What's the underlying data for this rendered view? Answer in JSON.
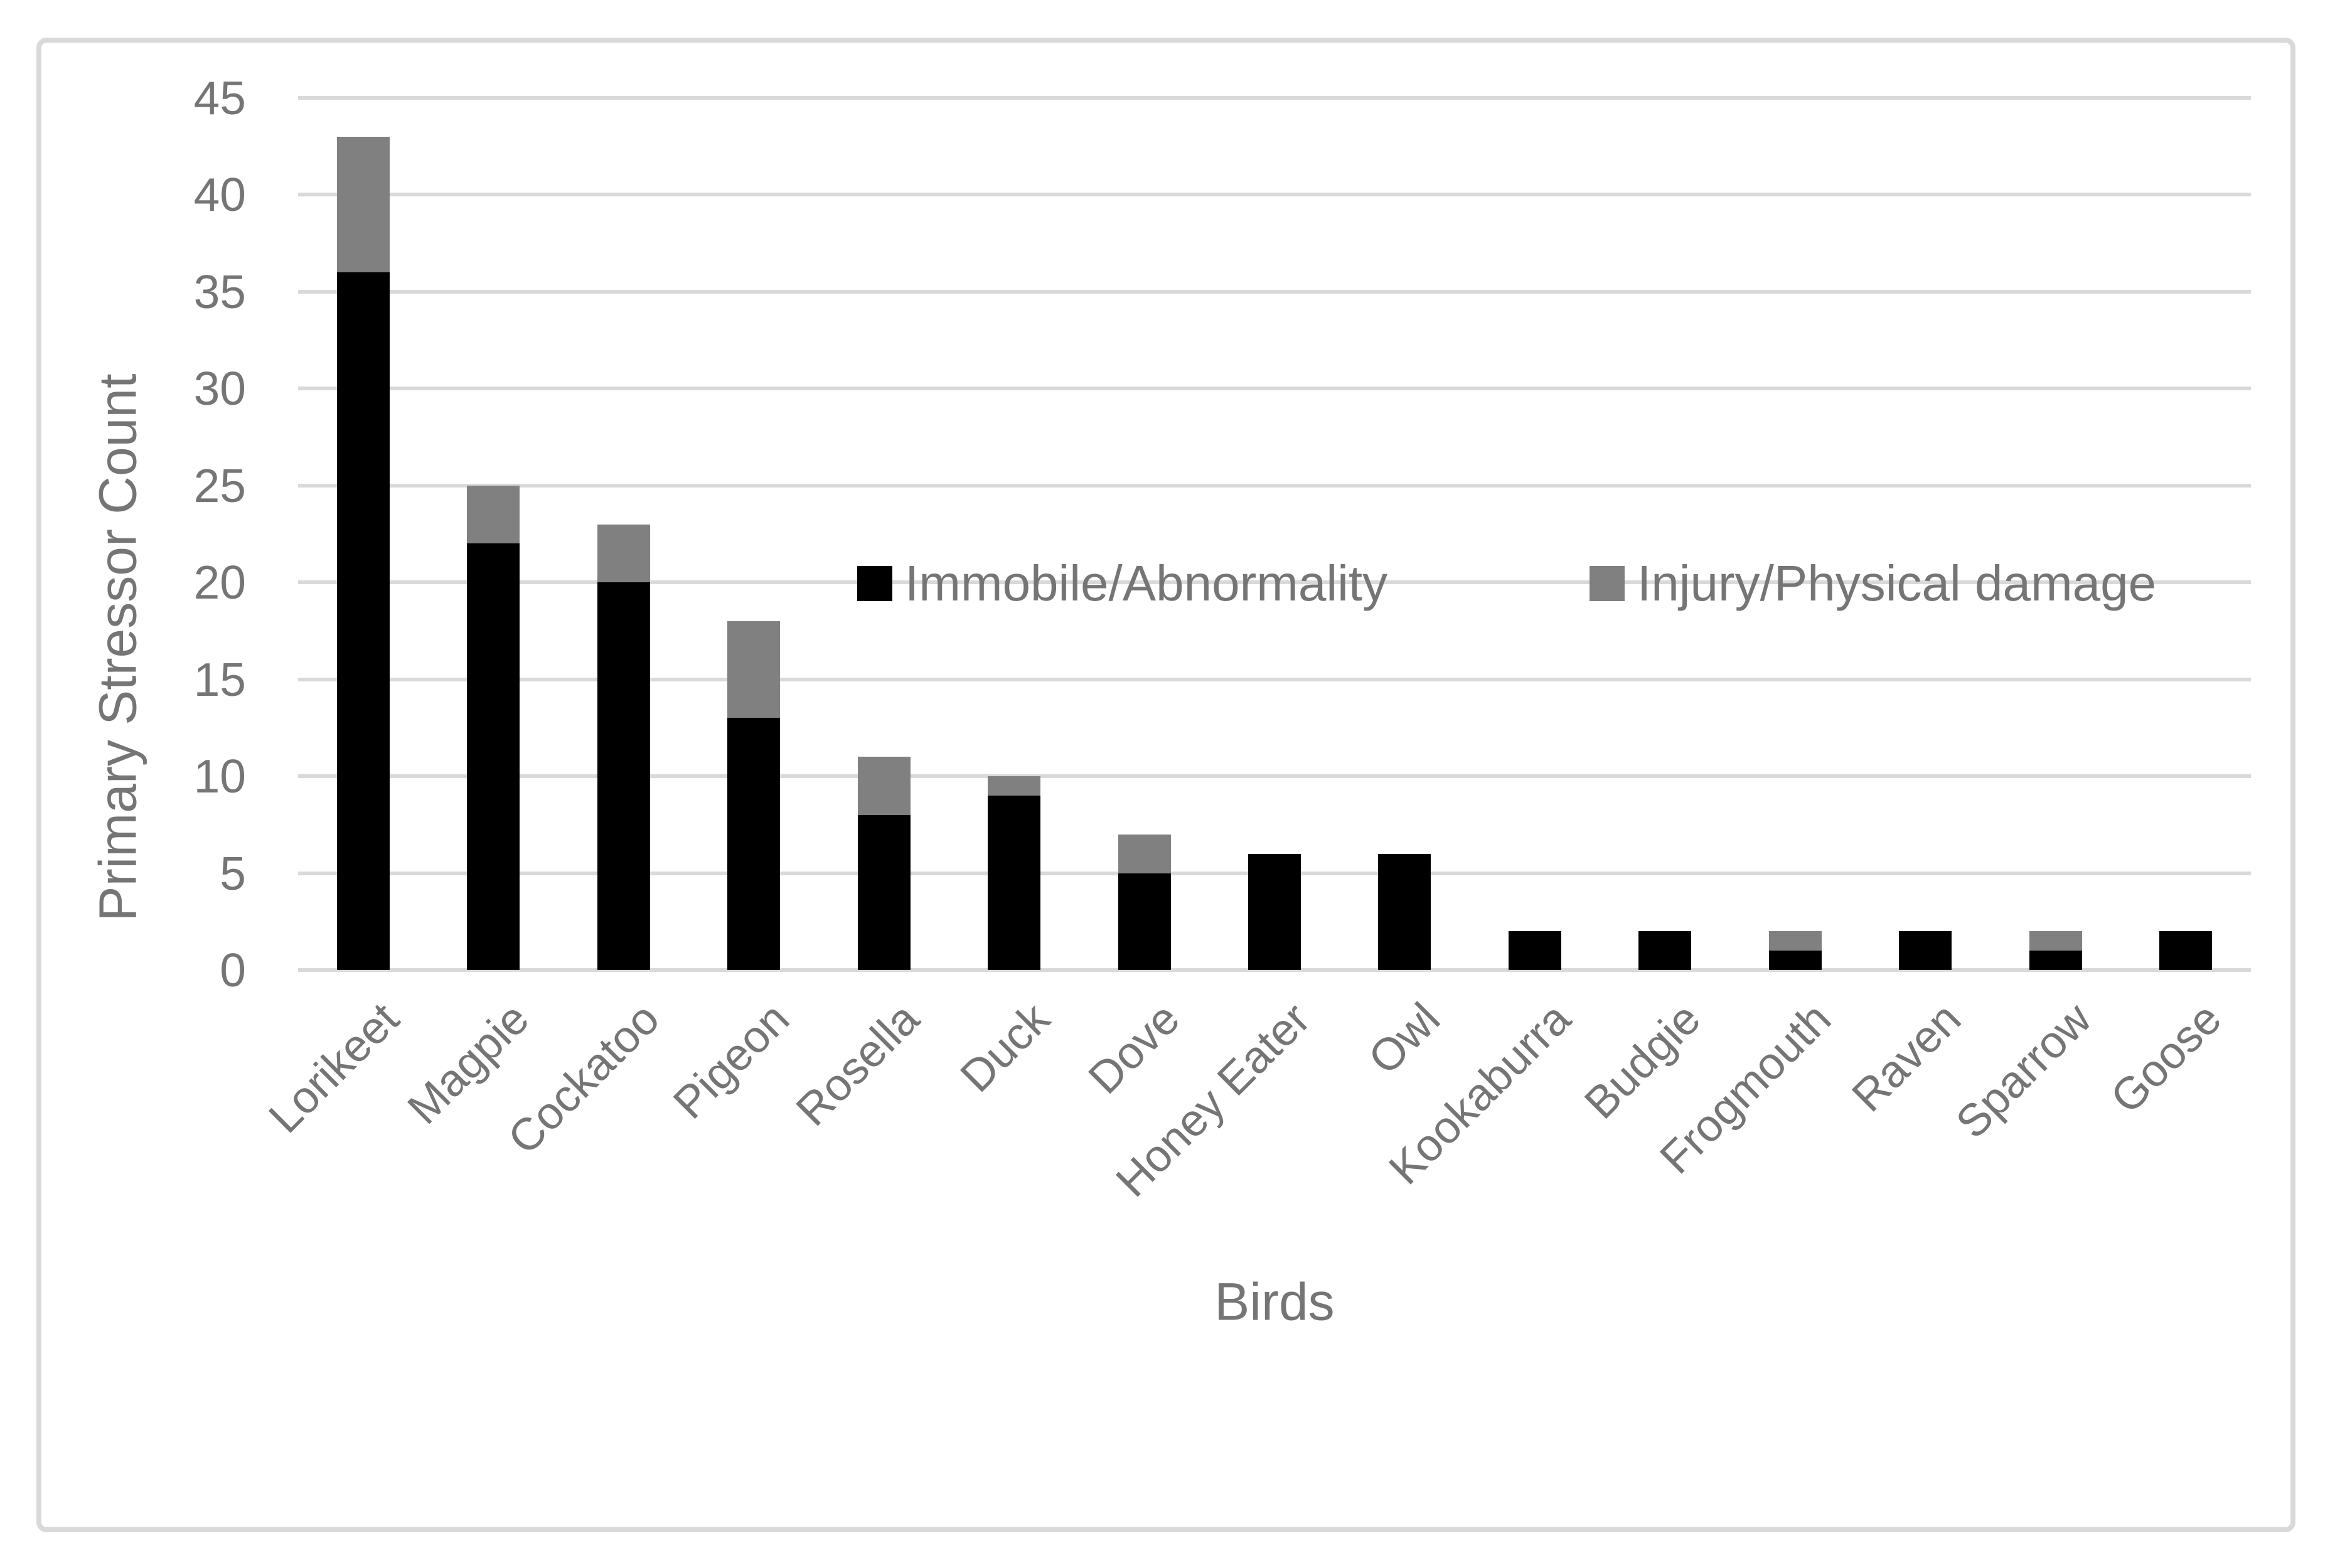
{
  "chart_data": {
    "type": "bar",
    "stacked": true,
    "title": "",
    "xlabel": "Birds",
    "ylabel": "Primary Stressor Count",
    "categories": [
      "Lorikeet",
      "Magpie",
      "Cockatoo",
      "Pigeon",
      "Rosella",
      "Duck",
      "Dove",
      "Honey Eater",
      "Owl",
      "Kookaburra",
      "Budgie",
      "Frogmouth",
      "Raven",
      "Sparrow",
      "Goose"
    ],
    "series": [
      {
        "name": "Immobile/Abnormality",
        "color": "#000000",
        "values": [
          36,
          22,
          20,
          13,
          8,
          9,
          5,
          6,
          6,
          2,
          2,
          1,
          2,
          1,
          2
        ]
      },
      {
        "name": "Injury/Physical damage",
        "color": "#808080",
        "values": [
          7,
          3,
          3,
          5,
          3,
          1,
          2,
          0,
          0,
          0,
          0,
          1,
          0,
          1,
          0
        ]
      }
    ],
    "totals": [
      43,
      25,
      23,
      18,
      11,
      10,
      7,
      6,
      6,
      2,
      2,
      2,
      2,
      2,
      2
    ],
    "ylim": [
      0,
      45
    ],
    "yticks": [
      0,
      5,
      10,
      15,
      20,
      25,
      30,
      35,
      40,
      45
    ],
    "grid": "horizontal",
    "gridline_color": "#D9D9D9",
    "frame_color": "#D9D9D9",
    "text_color": "#757575",
    "legend_position": "inside-plot-upper-middle"
  }
}
